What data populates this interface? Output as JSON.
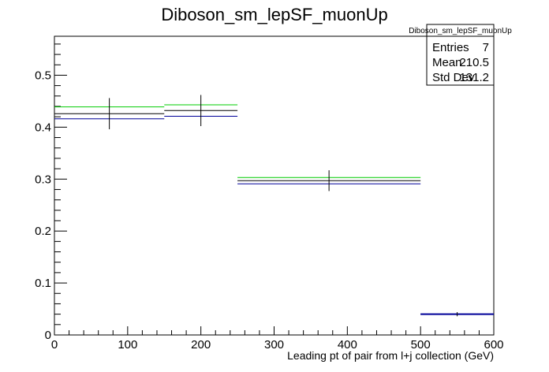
{
  "chart_data": {
    "type": "step",
    "title": "Diboson_sm_lepSF_muonUp",
    "xlabel": "Leading pt of pair from l+j collection (GeV)",
    "ylabel": "",
    "xlim": [
      0,
      600
    ],
    "ylim": [
      0,
      0.575
    ],
    "x_ticks": [
      0,
      100,
      200,
      300,
      400,
      500,
      600
    ],
    "y_ticks": [
      0,
      0.1,
      0.2,
      0.3,
      0.4,
      0.5
    ],
    "grid": false,
    "bins": [
      {
        "low": 0,
        "high": 150
      },
      {
        "low": 150,
        "high": 250
      },
      {
        "low": 250,
        "high": 500
      },
      {
        "low": 500,
        "high": 600
      }
    ],
    "series": [
      {
        "color": "#00cc00",
        "values": [
          0.439,
          0.443,
          0.303,
          0.04
        ]
      },
      {
        "color": "#000000",
        "values": [
          0.426,
          0.432,
          0.297,
          0.04
        ]
      },
      {
        "color": "#000099",
        "values": [
          0.416,
          0.421,
          0.291,
          0.04
        ]
      }
    ],
    "error_bars": {
      "color": "#000000",
      "x": [
        75,
        200,
        375,
        550
      ],
      "y": [
        0.426,
        0.432,
        0.297,
        0.04
      ],
      "err": [
        0.03,
        0.03,
        0.02,
        0.004
      ]
    },
    "stats_box": {
      "header": "Diboson_sm_lepSF_muonUp",
      "rows": [
        {
          "label": "Entries",
          "value": "7"
        },
        {
          "label": "Mean",
          "value": "210.5"
        },
        {
          "label": "Std Dev",
          "value": "131.2"
        }
      ]
    }
  }
}
